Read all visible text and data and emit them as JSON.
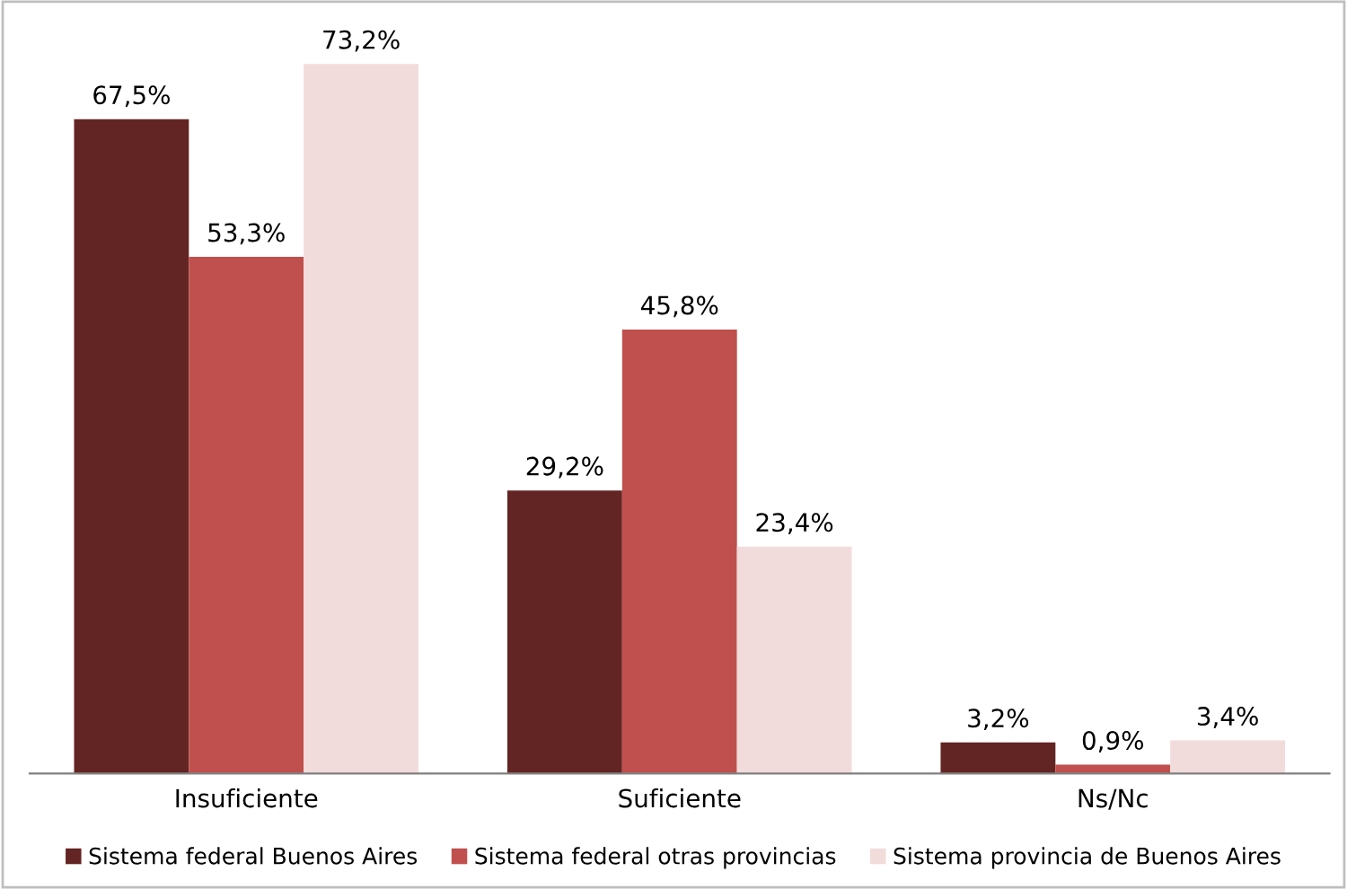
{
  "chart_data": {
    "type": "bar",
    "categories": [
      "Insuficiente",
      "Suficiente",
      "Ns/Nc"
    ],
    "series": [
      {
        "name": "Sistema federal Buenos Aires",
        "color": "#632523",
        "values": [
          67.5,
          29.2,
          3.2
        ],
        "value_labels": [
          "67,5%",
          "29,2%",
          "3,2%"
        ]
      },
      {
        "name": "Sistema federal otras provincias",
        "color": "#c0504d",
        "values": [
          53.3,
          45.8,
          0.9
        ],
        "value_labels": [
          "53,3%",
          "45,8%",
          "0,9%"
        ]
      },
      {
        "name": "Sistema provincia de Buenos Aires",
        "color": "#f2dcdb",
        "values": [
          73.2,
          23.4,
          3.4
        ],
        "value_labels": [
          "73,2%",
          "23,4%",
          "3,4%"
        ]
      }
    ],
    "legend": "bottom"
  }
}
